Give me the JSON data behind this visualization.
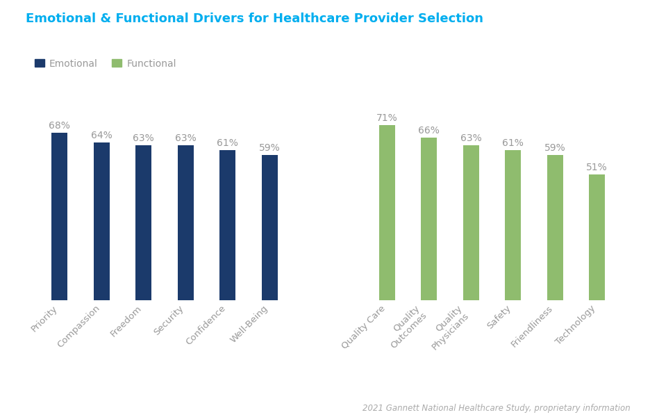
{
  "title": "Emotional & Functional Drivers for Healthcare Provider Selection",
  "title_color": "#00AEEF",
  "background_color": "#ffffff",
  "emotional_categories": [
    "Priority",
    "Compassion",
    "Freedom",
    "Security",
    "Confidence",
    "Well-Being"
  ],
  "emotional_values": [
    68,
    64,
    63,
    63,
    61,
    59
  ],
  "emotional_color": "#1B3A6B",
  "functional_categories": [
    "Quality Care",
    "Quality\nOutcomes",
    "Quality\nPhysicians",
    "Safety",
    "Friendliness",
    "Technology"
  ],
  "functional_values": [
    71,
    66,
    63,
    61,
    59,
    51
  ],
  "functional_color": "#8FBC6E",
  "label_color": "#999999",
  "label_fontsize": 10,
  "tick_label_color": "#999999",
  "tick_label_fontsize": 9.5,
  "legend_emotional": "Emotional",
  "legend_functional": "Functional",
  "footer_text": "2021 Gannett National Healthcare Study, proprietary information",
  "footer_color": "#aaaaaa",
  "footer_fontsize": 8.5,
  "bar_width": 0.38,
  "ylim": [
    0,
    88
  ]
}
